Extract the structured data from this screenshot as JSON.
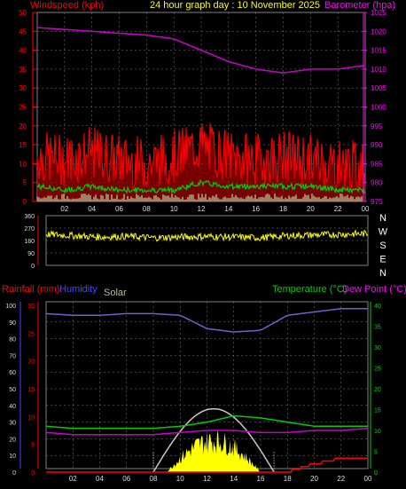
{
  "header": {
    "title": "24 hour graph day : 10 November 2025",
    "left_label": "Windspeed (kph)",
    "right_label": "Barometer (hpa)"
  },
  "colors": {
    "background": "#000000",
    "grid": "#808080",
    "wind_gust": "#ff0000",
    "wind_avg": "#00cc00",
    "wind_min": "#c8ffc8",
    "barometer": "#cc00cc",
    "direction": "#ffff00",
    "humidity": "#6666cc",
    "temperature": "#00cc00",
    "dew_point": "#cc00cc",
    "rain": "#ff0000",
    "solar": "#ffff00",
    "solar_max": "#c8c8c8",
    "axis_left_wind": "#ff0000",
    "axis_right_baro": "#ff00ff",
    "axis_humidity": "#4444ff",
    "axis_temp": "#00cc00"
  },
  "x_ticks": [
    "02",
    "04",
    "06",
    "08",
    "10",
    "12",
    "14",
    "16",
    "18",
    "20",
    "22",
    "00"
  ],
  "wind_panel": {
    "y_ticks": [
      "0",
      "5",
      "10",
      "15",
      "20",
      "25",
      "30",
      "35",
      "40",
      "45",
      "50"
    ],
    "baro_ticks": [
      "975",
      "980",
      "985",
      "990",
      "995",
      "1000",
      "1005",
      "1010",
      "1015",
      "1020",
      "1025"
    ]
  },
  "direction_panel": {
    "y_ticks": [
      "0",
      "90",
      "180",
      "270",
      "360"
    ],
    "compass": [
      "N",
      "W",
      "S",
      "E",
      "N"
    ]
  },
  "lower_panel": {
    "rain_label": "Rainfall (mm)",
    "humidity_label": "Humidity",
    "solar_label": "Solar",
    "temp_label": "Temperature (°C)",
    "dew_label": "Dew Point (°C)",
    "humidity_ticks": [
      "0",
      "10",
      "20",
      "30",
      "40",
      "50",
      "60",
      "70",
      "80",
      "90",
      "100"
    ],
    "rain_ticks": [
      "0",
      "5",
      "10",
      "15",
      "20",
      "25",
      "30"
    ],
    "temp_ticks": [
      "0",
      "5",
      "10",
      "15",
      "20",
      "25",
      "30",
      "35",
      "40"
    ]
  },
  "chart_data": [
    {
      "type": "line",
      "x_hours": [
        0,
        2,
        4,
        6,
        8,
        10,
        12,
        14,
        16,
        18,
        20,
        22,
        24
      ],
      "series": [
        {
          "name": "Wind gust",
          "values": [
            12,
            11,
            13,
            11,
            10,
            12,
            15,
            12,
            11,
            12,
            11,
            10,
            9
          ],
          "ylim": [
            0,
            50
          ]
        },
        {
          "name": "Wind average",
          "values": [
            4,
            3,
            4,
            3,
            3,
            3,
            5,
            4,
            4,
            4,
            4,
            3,
            3
          ],
          "ylim": [
            0,
            50
          ]
        },
        {
          "name": "Barometer",
          "values": [
            1021,
            1020.5,
            1020,
            1019.5,
            1019,
            1018,
            1015,
            1012,
            1010,
            1009,
            1010,
            1010,
            1011
          ],
          "ylim": [
            975,
            1025
          ]
        }
      ]
    },
    {
      "type": "line",
      "x_hours": [
        0,
        2,
        4,
        6,
        8,
        10,
        12,
        14,
        16,
        18,
        20,
        22,
        24
      ],
      "series": [
        {
          "name": "Wind direction",
          "values": [
            225,
            215,
            205,
            210,
            200,
            205,
            210,
            205,
            200,
            215,
            220,
            225,
            230
          ],
          "ylim": [
            0,
            360
          ]
        }
      ]
    },
    {
      "type": "line",
      "x_hours": [
        0,
        2,
        4,
        6,
        8,
        10,
        12,
        14,
        16,
        18,
        20,
        22,
        24
      ],
      "series": [
        {
          "name": "Humidity",
          "values": [
            95,
            94,
            94,
            95,
            95,
            94,
            86,
            84,
            85,
            94,
            96,
            98,
            98
          ],
          "ylim": [
            0,
            100
          ]
        },
        {
          "name": "Temperature",
          "values": [
            11,
            10.5,
            10.5,
            10.5,
            10.5,
            11,
            12,
            13.5,
            13,
            12,
            11,
            11,
            11
          ],
          "ylim": [
            0,
            40
          ]
        },
        {
          "name": "Dew Point",
          "values": [
            9.5,
            9,
            9,
            9,
            9,
            9.5,
            10,
            10,
            9.5,
            9.5,
            10,
            10,
            10.5
          ],
          "ylim": [
            0,
            40
          ]
        },
        {
          "name": "Rainfall",
          "values": [
            0,
            0,
            0,
            0,
            0,
            0,
            0,
            0,
            0,
            0,
            1.5,
            2.5,
            2.5
          ],
          "ylim": [
            0,
            30
          ]
        },
        {
          "name": "Solar",
          "values": [
            0,
            0,
            0,
            0,
            0,
            8,
            14,
            10,
            4,
            0,
            0,
            0,
            0
          ],
          "ylim": [
            0,
            100
          ]
        }
      ]
    }
  ]
}
